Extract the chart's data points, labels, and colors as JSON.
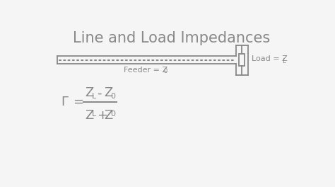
{
  "title": "Line and Load Impedances",
  "title_color": "#888888",
  "title_fontsize": 15,
  "bg_color": "#f5f5f5",
  "line_color": "#888888",
  "formula_color": "#888888",
  "feeder_label": "Feeder = Z",
  "feeder_sub": "0",
  "load_label": "Load = Z",
  "load_sub": "L"
}
